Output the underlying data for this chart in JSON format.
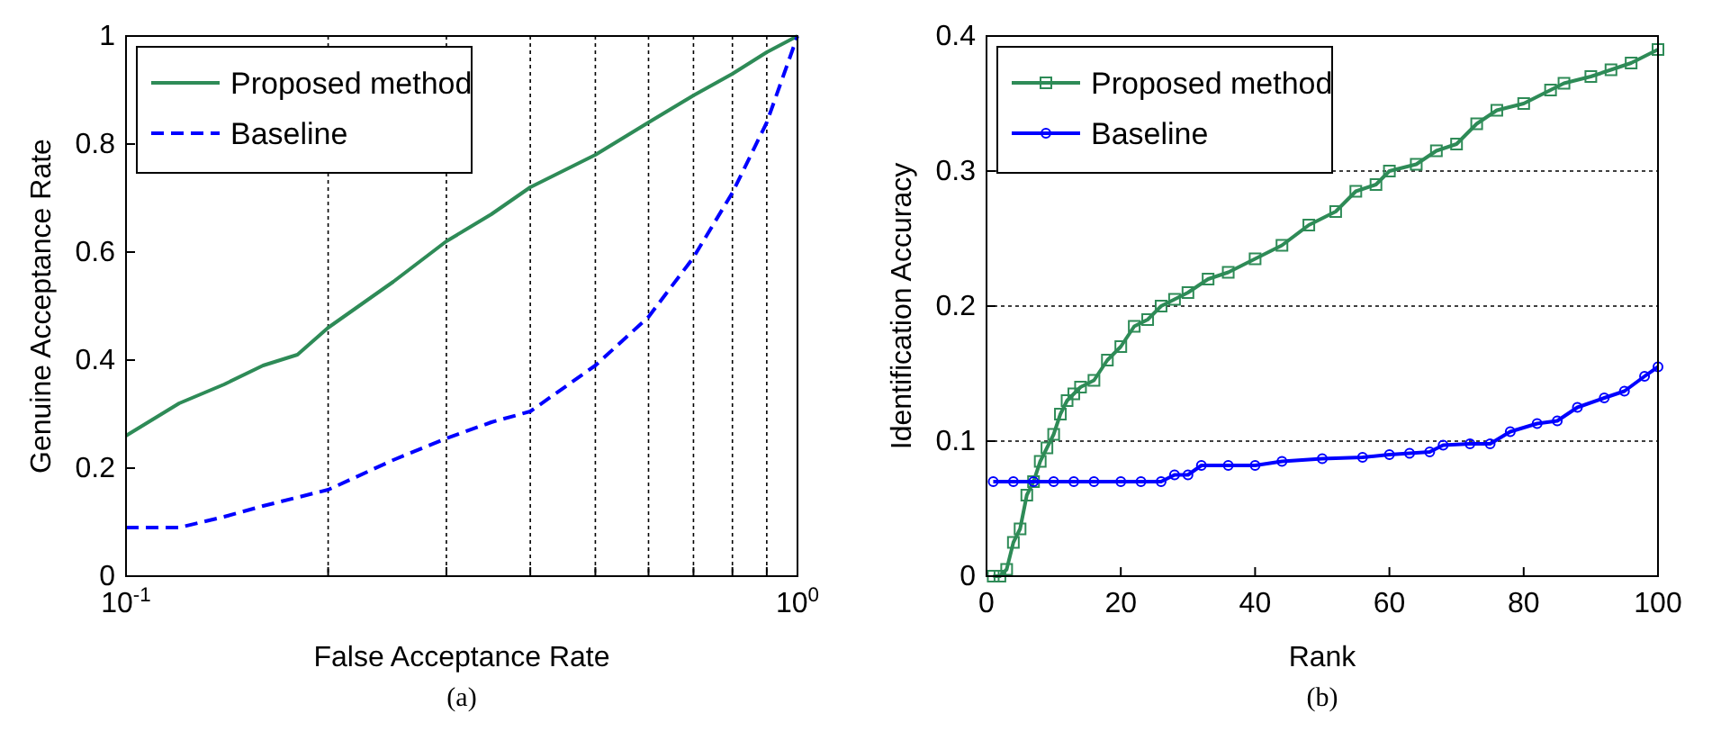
{
  "chart_data": [
    {
      "type": "line",
      "xlabel": "False Acceptance Rate",
      "ylabel": "Genuine Acceptance Rate",
      "annotations": [
        "(a)"
      ],
      "log": "x",
      "grid": "x",
      "legend": "top left",
      "marker": "none",
      "xlim": [
        0.1,
        1
      ],
      "xticks": [
        {
          "value": 0.1,
          "label": "10$^{-1}$"
        },
        {
          "value": 0.2,
          "label": null
        },
        {
          "value": 0.3,
          "label": null
        },
        {
          "value": 0.4,
          "label": null
        },
        {
          "value": 0.5,
          "label": null
        },
        {
          "value": 0.6,
          "label": null
        },
        {
          "value": 0.7,
          "label": null
        },
        {
          "value": 0.8,
          "label": null
        },
        {
          "value": 0.9,
          "label": null
        },
        {
          "value": 1,
          "label": "10$^{0}$"
        }
      ],
      "ylim": [
        0,
        1
      ],
      "yticks": [
        0,
        0.2,
        0.4,
        0.6,
        0.8,
        1
      ],
      "series": [
        {
          "name": "Proposed method",
          "color": "#2e8b57",
          "line_style": "solid",
          "x": [
            0.1,
            0.12,
            0.14,
            0.16,
            0.18,
            0.2,
            0.25,
            0.3,
            0.35,
            0.4,
            0.5,
            0.6,
            0.7,
            0.8,
            0.9,
            1
          ],
          "values": [
            0.26,
            0.32,
            0.355,
            0.39,
            0.41,
            0.46,
            0.545,
            0.62,
            0.67,
            0.72,
            0.78,
            0.84,
            0.89,
            0.93,
            0.97,
            1
          ]
        },
        {
          "name": "Baseline",
          "color": "#0000ff",
          "line_style": "dashed",
          "x": [
            0.1,
            0.12,
            0.14,
            0.16,
            0.2,
            0.25,
            0.3,
            0.35,
            0.4,
            0.5,
            0.6,
            0.7,
            0.8,
            0.9,
            1
          ],
          "values": [
            0.09,
            0.09,
            0.11,
            0.13,
            0.16,
            0.215,
            0.255,
            0.285,
            0.305,
            0.39,
            0.48,
            0.59,
            0.71,
            0.84,
            1
          ]
        }
      ]
    },
    {
      "type": "line",
      "xlabel": "Rank",
      "ylabel": "Identification Accuracy",
      "annotations": [
        "(b)"
      ],
      "grid": "y",
      "legend": "top left",
      "xlim": [
        0,
        100
      ],
      "xticks": [
        0,
        20,
        40,
        60,
        80,
        100
      ],
      "ylim": [
        0,
        0.4
      ],
      "yticks": [
        0,
        0.1,
        0.2,
        0.3,
        0.4
      ],
      "series": [
        {
          "name": "Proposed method",
          "color": "#2e8b57",
          "marker": "square",
          "line_style": "solid",
          "x": [
            1,
            2,
            3,
            4,
            5,
            6,
            7,
            8,
            9,
            10,
            11,
            12,
            13,
            14,
            16,
            18,
            20,
            22,
            24,
            26,
            28,
            30,
            33,
            36,
            40,
            44,
            48,
            52,
            55,
            58,
            60,
            64,
            67,
            70,
            73,
            76,
            80,
            84,
            86,
            90,
            93,
            96,
            100
          ],
          "values": [
            0,
            0,
            0.005,
            0.025,
            0.035,
            0.06,
            0.07,
            0.085,
            0.095,
            0.105,
            0.12,
            0.13,
            0.135,
            0.14,
            0.145,
            0.16,
            0.17,
            0.185,
            0.19,
            0.2,
            0.205,
            0.21,
            0.22,
            0.225,
            0.235,
            0.245,
            0.26,
            0.27,
            0.285,
            0.29,
            0.3,
            0.305,
            0.315,
            0.32,
            0.335,
            0.345,
            0.35,
            0.36,
            0.365,
            0.37,
            0.375,
            0.38,
            0.39
          ]
        },
        {
          "name": "Baseline",
          "color": "#0000ff",
          "marker": "circle",
          "line_style": "solid",
          "x": [
            1,
            4,
            7,
            10,
            13,
            16,
            20,
            23,
            26,
            28,
            30,
            32,
            36,
            40,
            44,
            50,
            56,
            60,
            63,
            66,
            68,
            72,
            75,
            78,
            82,
            85,
            88,
            92,
            95,
            98,
            100
          ],
          "values": [
            0.07,
            0.07,
            0.07,
            0.07,
            0.07,
            0.07,
            0.07,
            0.07,
            0.07,
            0.075,
            0.075,
            0.082,
            0.082,
            0.082,
            0.085,
            0.087,
            0.088,
            0.09,
            0.091,
            0.092,
            0.097,
            0.098,
            0.098,
            0.107,
            0.113,
            0.115,
            0.125,
            0.132,
            0.137,
            0.148,
            0.155
          ]
        }
      ]
    }
  ]
}
